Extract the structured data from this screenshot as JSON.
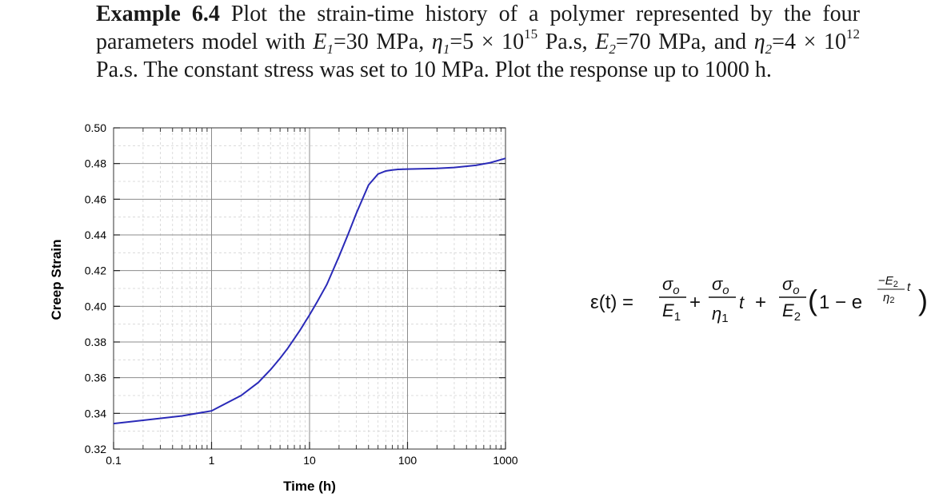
{
  "problem": {
    "label": "Example 6.4",
    "sentence1_a": "Plot the strain-time history of a polymer represented by the four parameters model with ",
    "E1_value": "=30 MPa, ",
    "eta1_value": "=5 × 10",
    "eta1_exp": "15",
    "eta1_unit": " Pa.s, ",
    "E2_value": "=70 MPa, and ",
    "eta2_value": "=4 × 10",
    "eta2_exp": "12",
    "eta2_unit": " Pa.s. The constant stress was set to 10 MPa. Plot the response up to 1000 h."
  },
  "chart_data": {
    "type": "line",
    "xlabel": "Time (h)",
    "ylabel": "Creep Strain",
    "xscale": "log",
    "xlim": [
      0.1,
      1000
    ],
    "ylim": [
      0.32,
      0.5
    ],
    "xticks": [
      "0.1",
      "1",
      "10",
      "100",
      "1000"
    ],
    "yticks": [
      "0.32",
      "0.34",
      "0.36",
      "0.38",
      "0.40",
      "0.42",
      "0.44",
      "0.46",
      "0.48",
      "0.50"
    ],
    "grid": true,
    "line_color": "#2a2ab8",
    "series": [
      {
        "x": [
          0.1,
          0.2,
          0.5,
          1,
          2,
          3,
          4,
          5,
          6,
          8,
          10,
          12,
          15,
          20,
          25,
          30,
          40,
          50,
          60,
          70,
          80,
          100,
          150,
          200,
          300,
          500,
          700,
          1000
        ],
        "y": [
          0.3343,
          0.3361,
          0.3386,
          0.3414,
          0.35,
          0.3573,
          0.3645,
          0.3708,
          0.3765,
          0.3866,
          0.3952,
          0.4026,
          0.4122,
          0.428,
          0.4409,
          0.452,
          0.468,
          0.4741,
          0.4758,
          0.4764,
          0.4767,
          0.4769,
          0.4771,
          0.4773,
          0.4778,
          0.479,
          0.4805,
          0.4829
        ]
      }
    ]
  },
  "equation": {
    "lhs": "ε(t) =",
    "sigma": "σ",
    "sigma_sub": "o",
    "E1": "E",
    "E1_sub": "1",
    "eta1": "η",
    "eta1_sub": "1",
    "E2": "E",
    "E2_sub": "2",
    "eta2": "η",
    "eta2_sub": "2",
    "plus": "+",
    "t": "t",
    "one_minus": "1 − e",
    "neg": "−",
    "open_paren": "(",
    "close_paren": ")"
  }
}
